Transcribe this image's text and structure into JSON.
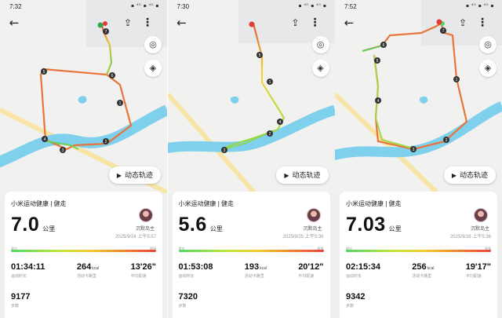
{
  "common": {
    "status_icons": "▪ ⁴ᴳ ▪ ⁴ᴳ ▪",
    "back_icon": "back-arrow-icon",
    "share_icon": "share-icon",
    "more_icon": "more-vertical-icon",
    "locate_icon": "locate-icon",
    "layers_icon": "layers-icon",
    "replay_label": "动态轨迹",
    "app_title": "小米运动健康 | 健走",
    "distance_unit": "公里",
    "nickname": "沉默岛主",
    "pace_fast": "最快",
    "pace_slow": "最慢",
    "label_duration": "运动时长",
    "label_calories": "活动卡路里",
    "label_pace": "平均配速",
    "label_steps": "步数",
    "calorie_unit": "kcal",
    "colors": {
      "water": "#7fd0ec",
      "road": "#f7e5a8",
      "marker": "#333333",
      "start": "#2fa84f",
      "end": "#e53935"
    }
  },
  "panels": [
    {
      "time": "7:32",
      "distance": "7.0",
      "datetime": "2025/9/24 上午5:57",
      "duration": "01:34:11",
      "calories": "264",
      "pace": "13'26\"",
      "steps": "9177"
    },
    {
      "time": "7:30",
      "distance": "5.6",
      "datetime": "2025/9/25 上午5:36",
      "duration": "01:53:08",
      "calories": "193",
      "pace": "20'12\"",
      "steps": "7320"
    },
    {
      "time": "7:52",
      "distance": "7.03",
      "datetime": "2025/9/26 上午5:36",
      "duration": "02:15:34",
      "calories": "256",
      "pace": "19'17\"",
      "steps": "9342"
    }
  ]
}
